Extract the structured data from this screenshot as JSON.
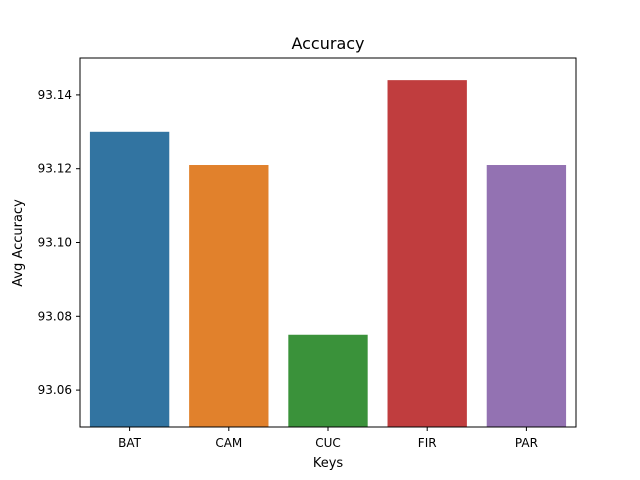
{
  "chart_data": {
    "type": "bar",
    "title": "Accuracy",
    "xlabel": "Keys",
    "ylabel": "Avg Accuracy",
    "categories": [
      "BAT",
      "CAM",
      "CUC",
      "FIR",
      "PAR"
    ],
    "values": [
      93.13,
      93.121,
      93.075,
      93.144,
      93.121
    ],
    "colors": [
      "#3274a1",
      "#e1812c",
      "#3a923a",
      "#c03d3e",
      "#9372b2"
    ],
    "ylim": [
      93.05,
      93.15
    ],
    "yticks": [
      93.06,
      93.08,
      93.1,
      93.12,
      93.14
    ],
    "ytick_labels": [
      "93.06",
      "93.08",
      "93.10",
      "93.12",
      "93.14"
    ],
    "grid": false,
    "legend": "none"
  }
}
